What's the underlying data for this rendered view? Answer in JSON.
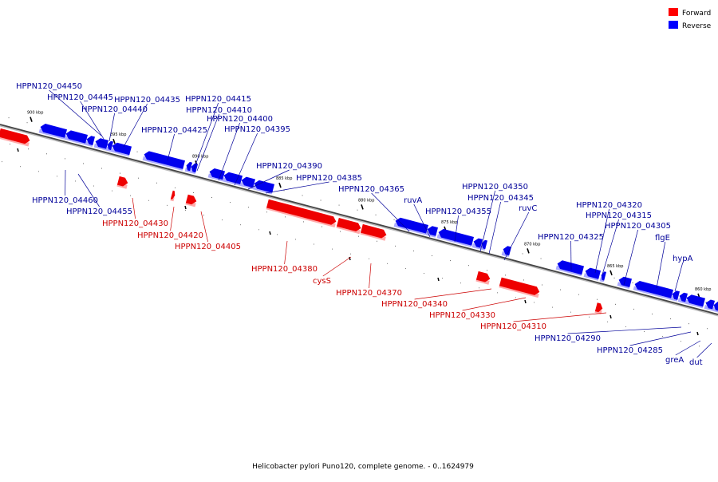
{
  "title": "Helicobacter pylori Puno120, complete genome. - 0..1624979",
  "legend": {
    "forward": {
      "label": "Forward",
      "color": "#ff0000"
    },
    "reverse": {
      "label": "Reverse",
      "color": "#0000ff"
    }
  },
  "colors": {
    "forward": "#ee0000",
    "forward_light": "#ffaaaa",
    "reverse": "#0000ee",
    "reverse_light": "#aaaaff",
    "forward_label": "#cc0000",
    "reverse_label": "#000099",
    "axis": "#444444"
  },
  "ticks": [
    {
      "label": "900 kbp"
    },
    {
      "label": "895 kbp"
    },
    {
      "label": "890 kbp"
    },
    {
      "label": "885 kbp"
    },
    {
      "label": "880 kbp"
    },
    {
      "label": "875 kbp"
    },
    {
      "label": "870 kbp"
    },
    {
      "label": "865 kbp"
    },
    {
      "label": "860 kbp"
    }
  ],
  "genes": [
    {
      "name": "",
      "strand": "forward"
    },
    {
      "name": "HPPN120_04460",
      "strand": "reverse"
    },
    {
      "name": "HPPN120_04455",
      "strand": "reverse"
    },
    {
      "name": "HPPN120_04450",
      "strand": "reverse"
    },
    {
      "name": "HPPN120_04445",
      "strand": "reverse"
    },
    {
      "name": "HPPN120_04440",
      "strand": "reverse"
    },
    {
      "name": "HPPN120_04435",
      "strand": "reverse"
    },
    {
      "name": "HPPN120_04430",
      "strand": "forward"
    },
    {
      "name": "HPPN120_04425",
      "strand": "reverse"
    },
    {
      "name": "HPPN120_04420",
      "strand": "forward"
    },
    {
      "name": "HPPN120_04415",
      "strand": "reverse"
    },
    {
      "name": "HPPN120_04410",
      "strand": "reverse"
    },
    {
      "name": "HPPN120_04405",
      "strand": "forward"
    },
    {
      "name": "HPPN120_04400",
      "strand": "reverse"
    },
    {
      "name": "HPPN120_04395",
      "strand": "reverse"
    },
    {
      "name": "HPPN120_04390",
      "strand": "reverse"
    },
    {
      "name": "HPPN120_04385",
      "strand": "reverse"
    },
    {
      "name": "HPPN120_04380",
      "strand": "forward"
    },
    {
      "name": "cysS",
      "strand": "forward"
    },
    {
      "name": "HPPN120_04370",
      "strand": "forward"
    },
    {
      "name": "HPPN120_04365",
      "strand": "reverse"
    },
    {
      "name": "ruvA",
      "strand": "reverse"
    },
    {
      "name": "HPPN120_04355",
      "strand": "reverse"
    },
    {
      "name": "HPPN120_04350",
      "strand": "reverse"
    },
    {
      "name": "HPPN120_04345",
      "strand": "reverse"
    },
    {
      "name": "HPPN120_04340",
      "strand": "forward"
    },
    {
      "name": "ruvC",
      "strand": "reverse"
    },
    {
      "name": "HPPN120_04330",
      "strand": "forward"
    },
    {
      "name": "HPPN120_04325",
      "strand": "reverse"
    },
    {
      "name": "HPPN120_04320",
      "strand": "reverse"
    },
    {
      "name": "HPPN120_04315",
      "strand": "reverse"
    },
    {
      "name": "HPPN120_04310",
      "strand": "forward"
    },
    {
      "name": "HPPN120_04305",
      "strand": "reverse"
    },
    {
      "name": "flgE",
      "strand": "reverse"
    },
    {
      "name": "hypA",
      "strand": "reverse"
    },
    {
      "name": "HPPN120_04290",
      "strand": "reverse"
    },
    {
      "name": "HPPN120_04285",
      "strand": "reverse"
    },
    {
      "name": "greA",
      "strand": "reverse"
    },
    {
      "name": "dut",
      "strand": "reverse"
    }
  ]
}
